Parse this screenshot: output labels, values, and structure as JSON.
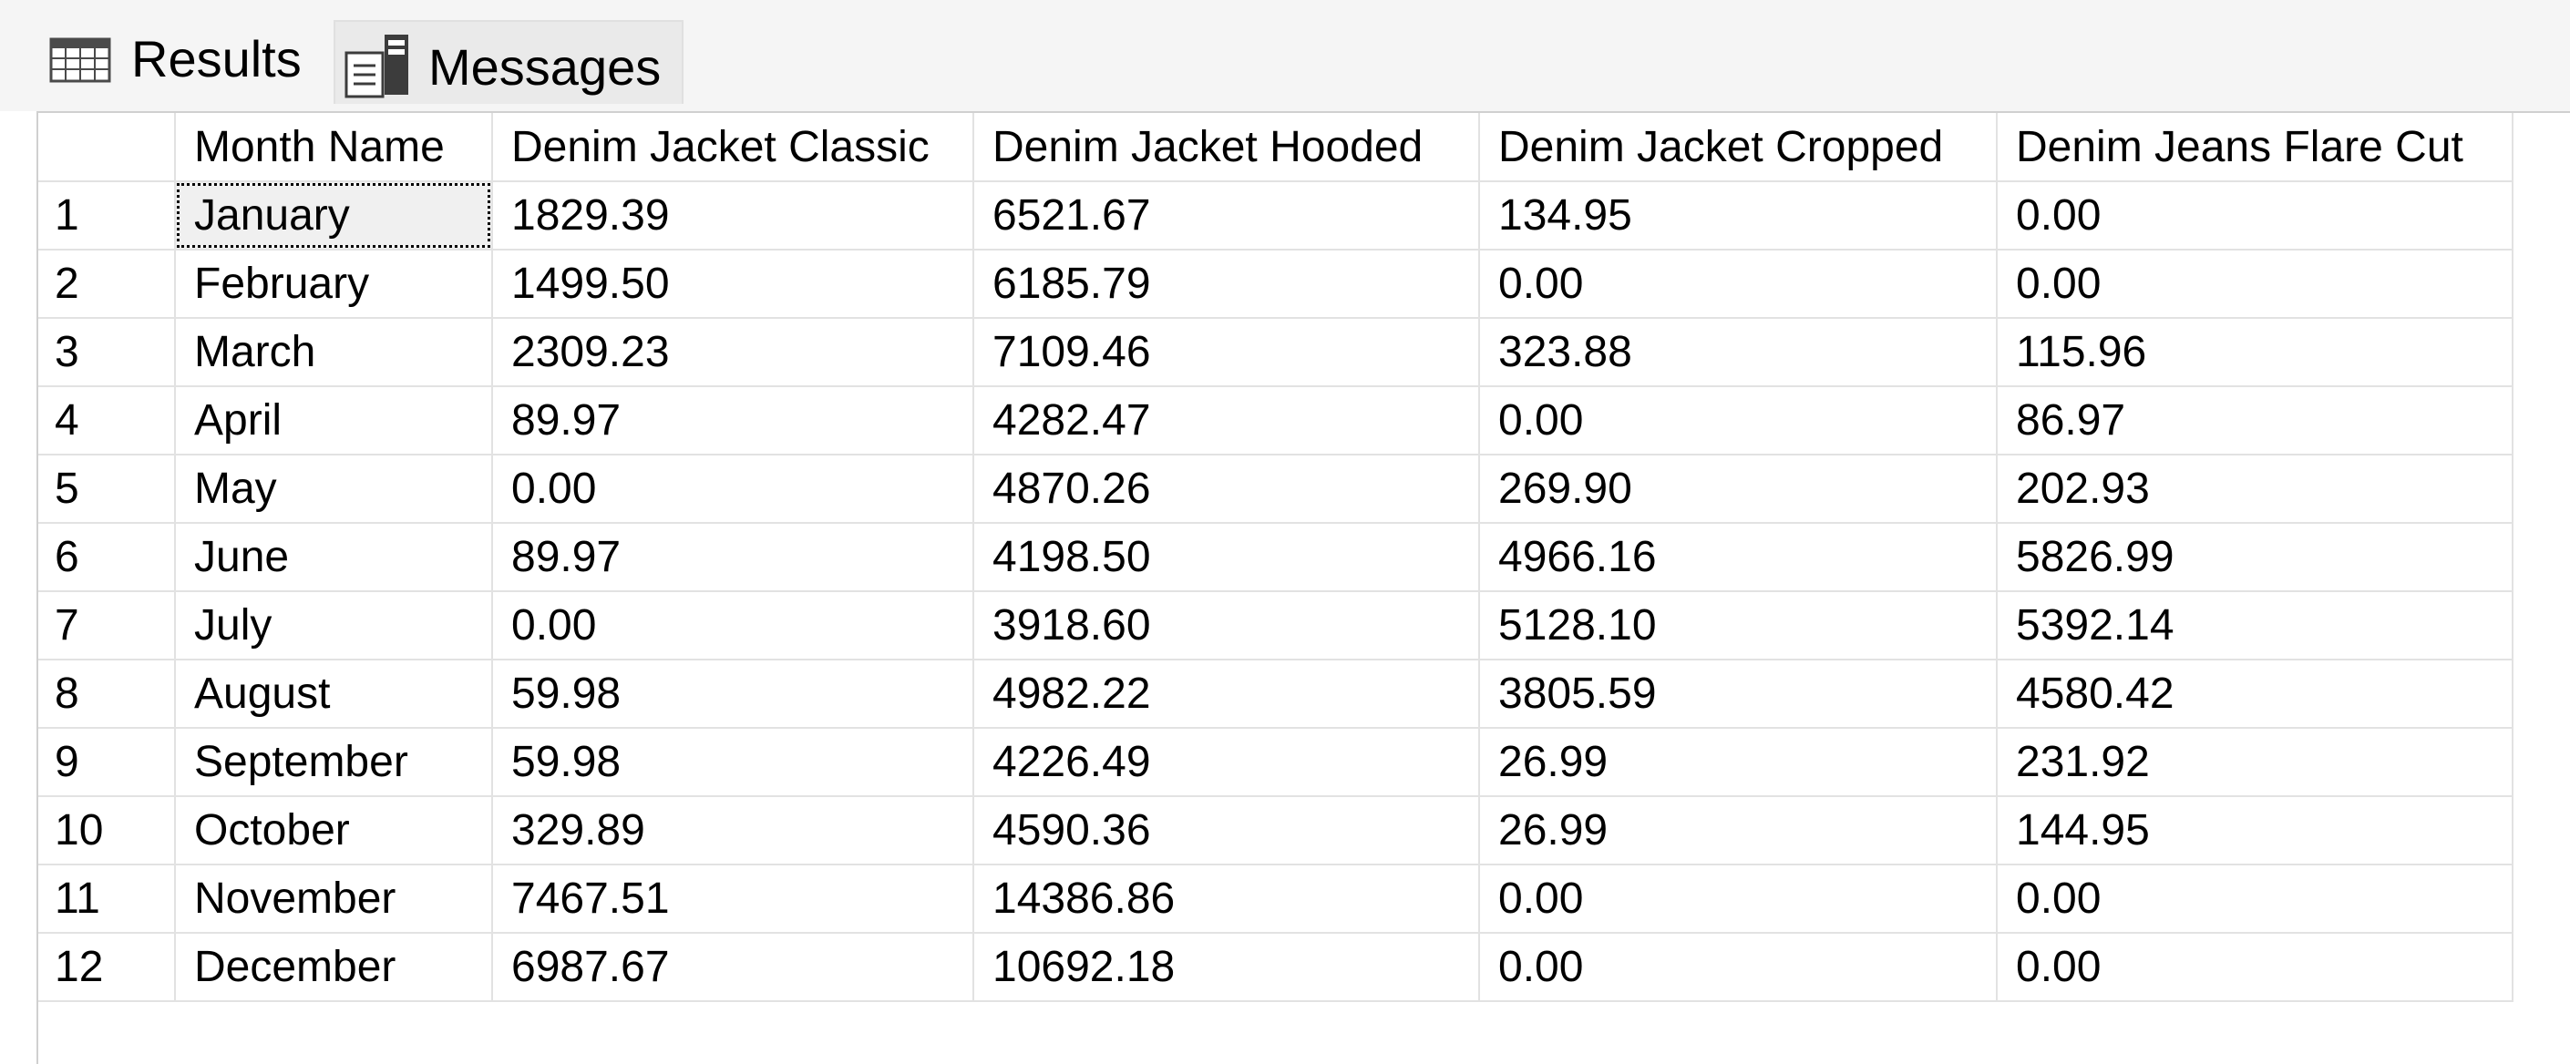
{
  "tabs": {
    "results": {
      "label": "Results",
      "icon": "grid-icon"
    },
    "messages": {
      "label": "Messages",
      "icon": "messages-document-icon"
    }
  },
  "grid": {
    "columns": [
      "",
      "Month Name",
      "Denim Jacket Classic",
      "Denim Jacket Hooded",
      "Denim Jacket Cropped",
      "Denim Jeans Flare Cut"
    ],
    "rows": [
      [
        "1",
        "January",
        "1829.39",
        "6521.67",
        "134.95",
        "0.00"
      ],
      [
        "2",
        "February",
        "1499.50",
        "6185.79",
        "0.00",
        "0.00"
      ],
      [
        "3",
        "March",
        "2309.23",
        "7109.46",
        "323.88",
        "115.96"
      ],
      [
        "4",
        "April",
        "89.97",
        "4282.47",
        "0.00",
        "86.97"
      ],
      [
        "5",
        "May",
        "0.00",
        "4870.26",
        "269.90",
        "202.93"
      ],
      [
        "6",
        "June",
        "89.97",
        "4198.50",
        "4966.16",
        "5826.99"
      ],
      [
        "7",
        "July",
        "0.00",
        "3918.60",
        "5128.10",
        "5392.14"
      ],
      [
        "8",
        "August",
        "59.98",
        "4982.22",
        "3805.59",
        "4580.42"
      ],
      [
        "9",
        "September",
        "59.98",
        "4226.49",
        "26.99",
        "231.92"
      ],
      [
        "10",
        "October",
        "329.89",
        "4590.36",
        "26.99",
        "144.95"
      ],
      [
        "11",
        "November",
        "7467.51",
        "14386.86",
        "0.00",
        "0.00"
      ],
      [
        "12",
        "December",
        "6987.67",
        "10692.18",
        "0.00",
        "0.00"
      ]
    ],
    "selected_cell": {
      "row": 0,
      "column": 1
    }
  }
}
